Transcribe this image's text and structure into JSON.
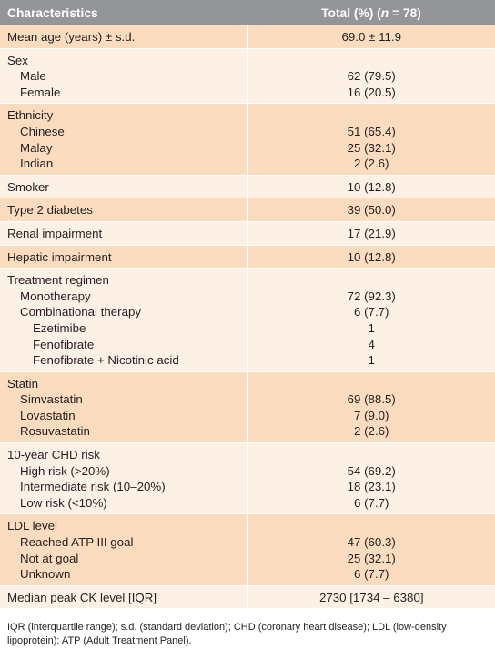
{
  "header": {
    "characteristics": "Characteristics",
    "total_prefix": "Total (%) (",
    "total_n": "n",
    "total_suffix": " = 78)"
  },
  "rows": [
    {
      "lines": [
        {
          "label": "Mean age (years) ± s.d.",
          "value": "69.0 ± 11.9",
          "indent": 0
        }
      ]
    },
    {
      "lines": [
        {
          "label": "Sex",
          "value": "",
          "indent": 0
        },
        {
          "label": "Male",
          "value": "62 (79.5)",
          "indent": 1
        },
        {
          "label": "Female",
          "value": "16 (20.5)",
          "indent": 1
        }
      ]
    },
    {
      "lines": [
        {
          "label": "Ethnicity",
          "value": "",
          "indent": 0
        },
        {
          "label": "Chinese",
          "value": "51 (65.4)",
          "indent": 1
        },
        {
          "label": "Malay",
          "value": "25 (32.1)",
          "indent": 1
        },
        {
          "label": "Indian",
          "value": "2 (2.6)",
          "indent": 1
        }
      ]
    },
    {
      "lines": [
        {
          "label": "Smoker",
          "value": "10 (12.8)",
          "indent": 0
        }
      ]
    },
    {
      "lines": [
        {
          "label": "Type 2 diabetes",
          "value": "39 (50.0)",
          "indent": 0
        }
      ]
    },
    {
      "lines": [
        {
          "label": "Renal impairment",
          "value": "17 (21.9)",
          "indent": 0
        }
      ]
    },
    {
      "lines": [
        {
          "label": "Hepatic impairment",
          "value": "10 (12.8)",
          "indent": 0
        }
      ]
    },
    {
      "lines": [
        {
          "label": "Treatment regimen",
          "value": "",
          "indent": 0
        },
        {
          "label": "Monotherapy",
          "value": "72 (92.3)",
          "indent": 1
        },
        {
          "label": "Combinational therapy",
          "value": "6 (7.7)",
          "indent": 1
        },
        {
          "label": "Ezetimibe",
          "value": "1",
          "indent": 2
        },
        {
          "label": "Fenofibrate",
          "value": "4",
          "indent": 2
        },
        {
          "label": "Fenofibrate + Nicotinic acid",
          "value": "1",
          "indent": 2
        }
      ]
    },
    {
      "lines": [
        {
          "label": "Statin",
          "value": "",
          "indent": 0
        },
        {
          "label": "Simvastatin",
          "value": "69 (88.5)",
          "indent": 1
        },
        {
          "label": "Lovastatin",
          "value": "7 (9.0)",
          "indent": 1
        },
        {
          "label": "Rosuvastatin",
          "value": "2 (2.6)",
          "indent": 1
        }
      ]
    },
    {
      "lines": [
        {
          "label": "10-year CHD risk",
          "value": "",
          "indent": 0
        },
        {
          "label": "High risk (>20%)",
          "value": "54 (69.2)",
          "indent": 1
        },
        {
          "label": "Intermediate risk (10–20%)",
          "value": "18 (23.1)",
          "indent": 1
        },
        {
          "label": "Low risk (<10%)",
          "value": "6 (7.7)",
          "indent": 1
        }
      ]
    },
    {
      "lines": [
        {
          "label": "LDL level",
          "value": "",
          "indent": 0
        },
        {
          "label": "Reached ATP III goal",
          "value": "47 (60.3)",
          "indent": 1
        },
        {
          "label": "Not at goal",
          "value": "25 (32.1)",
          "indent": 1
        },
        {
          "label": "Unknown",
          "value": "6 (7.7)",
          "indent": 1
        }
      ]
    },
    {
      "lines": [
        {
          "label": "Median peak CK level [IQR]",
          "value": "2730 [1734 – 6380]",
          "indent": 0
        }
      ]
    }
  ],
  "colors": {
    "header_bg": "#939598",
    "row_peach": "#fbdcbf",
    "row_light": "#fdf1e6"
  },
  "footnote": "IQR (interquartile range); s.d. (standard deviation); CHD (coronary heart disease); LDL (low-density lipoprotein); ATP (Adult Treatment Panel)."
}
